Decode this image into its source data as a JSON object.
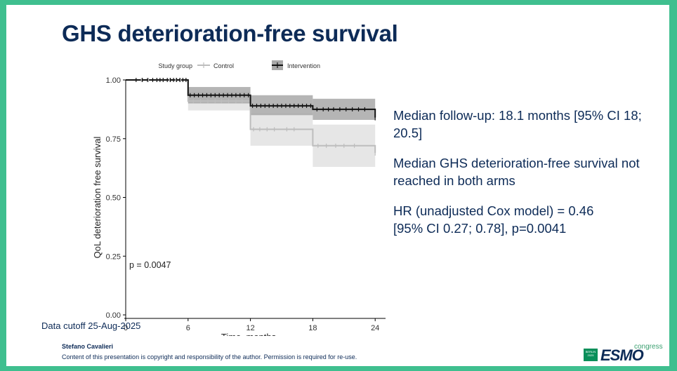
{
  "title": "GHS deterioration-free survival",
  "stats": {
    "line1": "Median follow-up: 18.1 months [95% CI 18; 20.5]",
    "line2": "Median GHS deterioration-free survival not reached in both arms",
    "line3a": "HR (unadjusted Cox model) = 0.46",
    "line3b": "[95% CI 0.27; 0.78], p=0.0041"
  },
  "footer": {
    "cutoff": "Data cutoff 25-Aug-2025",
    "author": "Stefano Cavalieri",
    "copyright": "Content of this presentation is copyright and responsibility of the author. Permission is required for re-use."
  },
  "logo": {
    "badge_line1": "BERLIN",
    "badge_line2": "2025",
    "word": "ESMO",
    "congress": "congress"
  },
  "colors": {
    "title": "#0d2b57",
    "control": "#bdbdbd",
    "intervention": "#111111",
    "ci_control": "#e6e6e6",
    "ci_intervention": "#a8a8a8",
    "background": "#3fbf8f"
  },
  "chart_data": {
    "type": "line",
    "subtype": "kaplan-meier",
    "xlabel": "Time, months",
    "ylabel": "QoL deterioration free survival",
    "xlim": [
      0,
      25
    ],
    "ylim": [
      0,
      1.0
    ],
    "x_ticks": [
      0,
      6,
      12,
      18,
      24
    ],
    "y_ticks": [
      0.0,
      0.25,
      0.5,
      0.75,
      1.0
    ],
    "y_tick_labels": [
      "0.00",
      "0.25",
      "0.50",
      "0.75",
      "1.00"
    ],
    "legend_title": "Study group",
    "legend_position": "top",
    "annotation": "p = 0.0047",
    "series": [
      {
        "name": "Control",
        "steps": [
          [
            0,
            1.0
          ],
          [
            6,
            0.91
          ],
          [
            12,
            0.79
          ],
          [
            18,
            0.72
          ],
          [
            24,
            0.69
          ]
        ],
        "ci_lower": [
          1.0,
          0.87,
          0.72,
          0.63
        ],
        "ci_upper": [
          1.0,
          0.95,
          0.86,
          0.81
        ],
        "censor_times": [
          1.5,
          2.2,
          3.0,
          3.6,
          4.2,
          4.8,
          5.3,
          6.5,
          7.2,
          7.9,
          8.6,
          9.2,
          9.9,
          10.6,
          11.2,
          12.3,
          12.9,
          13.6,
          14.3,
          15.5,
          16.2,
          18.5,
          19.3,
          20.2,
          21.0,
          22.0
        ],
        "end_censor": 24
      },
      {
        "name": "Intervention",
        "steps": [
          [
            0,
            1.0
          ],
          [
            6,
            0.935
          ],
          [
            12,
            0.89
          ],
          [
            18,
            0.875
          ],
          [
            24,
            0.84
          ]
        ],
        "ci_lower": [
          1.0,
          0.9,
          0.85,
          0.83
        ],
        "ci_upper": [
          1.0,
          0.97,
          0.935,
          0.92
        ],
        "censor_times": [
          1.0,
          1.6,
          2.1,
          2.6,
          3.0,
          3.3,
          3.6,
          4.0,
          4.3,
          4.6,
          4.9,
          5.2,
          5.5,
          5.8,
          6.2,
          6.6,
          7.0,
          7.4,
          7.8,
          8.2,
          8.6,
          9.0,
          9.4,
          9.8,
          10.2,
          10.6,
          11.0,
          11.4,
          11.8,
          12.2,
          12.6,
          13.0,
          13.4,
          13.8,
          14.2,
          14.6,
          15.0,
          15.4,
          15.8,
          16.2,
          16.6,
          17.0,
          17.4,
          17.8,
          18.4,
          19.0,
          19.5,
          20.0,
          20.6,
          21.2,
          21.8,
          22.4,
          23.0
        ],
        "end_censor": 24
      }
    ]
  }
}
